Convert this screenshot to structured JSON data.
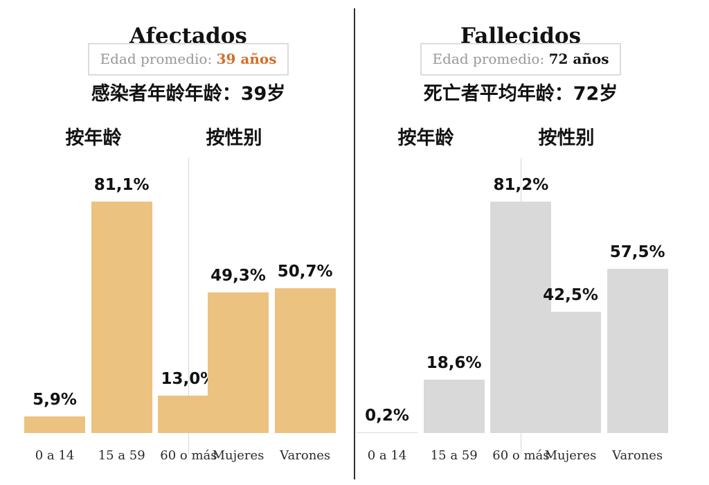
{
  "colors": {
    "panel_divider": "#2e2e2e",
    "group_divider": "#d8d8d8",
    "affected_bar": "#ecc280",
    "deceased_bar": "#d9d9d9",
    "accent_orange": "#d26e2a",
    "muted_label": "#979797",
    "text": "#121212"
  },
  "chart_data": [
    {
      "type": "bar",
      "title": "Afectados",
      "avg_label": "Edad promedio:",
      "avg_value": "39 años",
      "avg_value_color": "#d26e2a",
      "subtitle_cjk": "感染者年龄年龄：39岁",
      "group_age_label": "按年龄",
      "group_gender_label": "按性别",
      "categories": [
        "0 a 14",
        "15 a 59",
        "60 o más",
        "Mujeres",
        "Varones"
      ],
      "groups": [
        "age",
        "age",
        "age",
        "gender",
        "gender"
      ],
      "values": [
        5.9,
        81.1,
        13.0,
        49.3,
        50.7
      ],
      "value_labels": [
        "5,9%",
        "81,1%",
        "13,0%",
        "49,3%",
        "50,7%"
      ],
      "unit": "%",
      "ylim": [
        0,
        100
      ],
      "bar_color": "#ecc280",
      "grid": false,
      "legend": false
    },
    {
      "type": "bar",
      "title": "Fallecidos",
      "avg_label": "Edad promedio:",
      "avg_value": "72 años",
      "avg_value_color": "#121212",
      "subtitle_cjk": "死亡者平均年龄：72岁",
      "group_age_label": "按年龄",
      "group_gender_label": "按性别",
      "categories": [
        "0 a 14",
        "15 a 59",
        "60 o más",
        "Mujeres",
        "Varones"
      ],
      "groups": [
        "age",
        "age",
        "age",
        "gender",
        "gender"
      ],
      "values": [
        0.2,
        18.6,
        81.2,
        42.5,
        57.5
      ],
      "value_labels": [
        "0,2%",
        "18,6%",
        "81,2%",
        "42,5%",
        "57,5%"
      ],
      "unit": "%",
      "ylim": [
        0,
        100
      ],
      "bar_color": "#d9d9d9",
      "grid": false,
      "legend": false
    }
  ]
}
